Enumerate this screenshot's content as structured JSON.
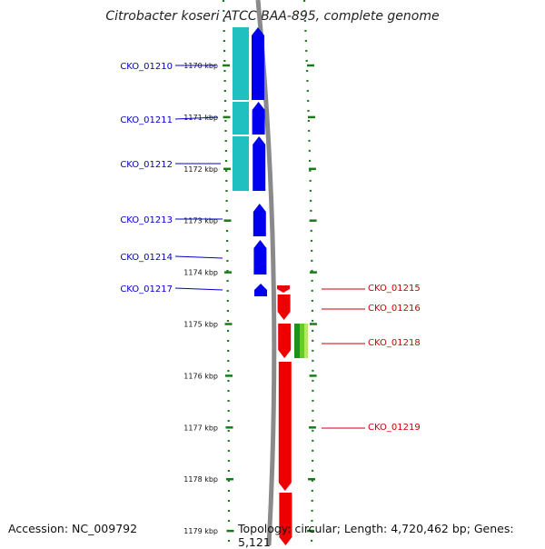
{
  "title": "Citrobacter koseri ATCC BAA-895, complete genome",
  "footer": {
    "accession": "Accession: NC_009792",
    "summary": "Topology: circular; Length: 4,720,462 bp; Genes: 5,121"
  },
  "colors": {
    "minus_strand": "#0000ee",
    "plus_strand": "#ee0000",
    "cyan_feature": "#20c0c0",
    "green_feature": "#44aa22",
    "axis": "#888888",
    "tick": "#1a7a1a"
  },
  "ticks": [
    {
      "kbp": 1170,
      "label": "1170 kbp"
    },
    {
      "kbp": 1171,
      "label": "1171 kbp"
    },
    {
      "kbp": 1172,
      "label": "1172 kbp"
    },
    {
      "kbp": 1173,
      "label": "1173 kbp"
    },
    {
      "kbp": 1174,
      "label": "1174 kbp"
    },
    {
      "kbp": 1175,
      "label": "1175 kbp"
    },
    {
      "kbp": 1176,
      "label": "1176 kbp"
    },
    {
      "kbp": 1177,
      "label": "1177 kbp"
    },
    {
      "kbp": 1178,
      "label": "1178 kbp"
    },
    {
      "kbp": 1179,
      "label": "1179 kbp"
    }
  ],
  "genes_left": [
    {
      "name": "CKO_01210"
    },
    {
      "name": "CKO_01211"
    },
    {
      "name": "CKO_01212"
    },
    {
      "name": "CKO_01213"
    },
    {
      "name": "CKO_01214"
    },
    {
      "name": "CKO_01217"
    }
  ],
  "genes_right": [
    {
      "name": "CKO_01215"
    },
    {
      "name": "CKO_01216"
    },
    {
      "name": "CKO_01218"
    },
    {
      "name": "CKO_01219"
    }
  ]
}
